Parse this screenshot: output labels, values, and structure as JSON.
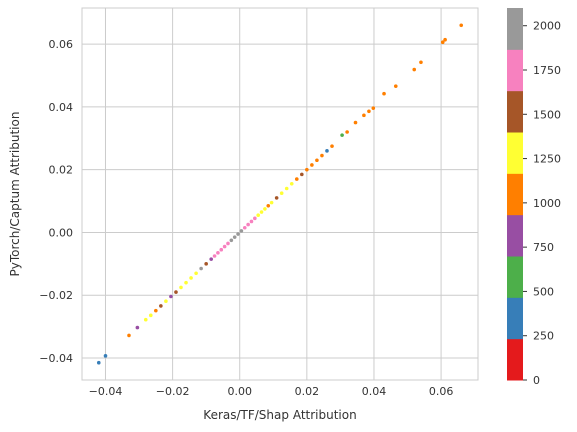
{
  "chart_data": {
    "type": "scatter",
    "title": "",
    "xlabel": "Keras/TF/Shap Attribution",
    "ylabel": "PyTorch/Captum Attribution",
    "xlim": [
      -0.047,
      0.071
    ],
    "ylim": [
      -0.047,
      0.0715
    ],
    "x_ticks": [
      -0.04,
      -0.02,
      0.0,
      0.02,
      0.04,
      0.06
    ],
    "x_tick_labels": [
      "−0.04",
      "−0.02",
      "0.00",
      "0.02",
      "0.04",
      "0.06"
    ],
    "y_ticks": [
      -0.04,
      -0.02,
      0.0,
      0.02,
      0.04,
      0.06
    ],
    "y_tick_labels": [
      "−0.04",
      "−0.02",
      "0.00",
      "0.02",
      "0.04",
      "0.06"
    ],
    "grid": true,
    "colorbar": {
      "min": 0,
      "max": 2100,
      "ticks": [
        0,
        250,
        500,
        750,
        1000,
        1250,
        1500,
        1750,
        2000
      ],
      "tick_labels": [
        "0",
        "250",
        "500",
        "750",
        "1000",
        "1250",
        "1500",
        "1750",
        "2000"
      ],
      "colors": [
        "#e41a1c",
        "#377eb8",
        "#4daf4a",
        "#984ea3",
        "#ff7f00",
        "#ffff33",
        "#a65628",
        "#f781bf",
        "#999999"
      ]
    },
    "points": [
      {
        "x": -0.042,
        "y": -0.0415,
        "c": 420
      },
      {
        "x": -0.04,
        "y": -0.0393,
        "c": 450
      },
      {
        "x": -0.033,
        "y": -0.0328,
        "c": 1020
      },
      {
        "x": -0.0305,
        "y": -0.0303,
        "c": 800
      },
      {
        "x": -0.028,
        "y": -0.0278,
        "c": 1300
      },
      {
        "x": -0.0265,
        "y": -0.0264,
        "c": 1350
      },
      {
        "x": -0.025,
        "y": -0.0249,
        "c": 1100
      },
      {
        "x": -0.0235,
        "y": -0.0234,
        "c": 1450
      },
      {
        "x": -0.022,
        "y": -0.0219,
        "c": 1250
      },
      {
        "x": -0.0205,
        "y": -0.0204,
        "c": 800
      },
      {
        "x": -0.019,
        "y": -0.019,
        "c": 1500
      },
      {
        "x": -0.0175,
        "y": -0.0175,
        "c": 1300
      },
      {
        "x": -0.016,
        "y": -0.016,
        "c": 1250
      },
      {
        "x": -0.0145,
        "y": -0.0145,
        "c": 1350
      },
      {
        "x": -0.013,
        "y": -0.013,
        "c": 1260
      },
      {
        "x": -0.0115,
        "y": -0.0115,
        "c": 1900
      },
      {
        "x": -0.01,
        "y": -0.01,
        "c": 1600
      },
      {
        "x": -0.0085,
        "y": -0.0085,
        "c": 800
      },
      {
        "x": -0.0075,
        "y": -0.0075,
        "c": 1800
      },
      {
        "x": -0.0065,
        "y": -0.0065,
        "c": 1850
      },
      {
        "x": -0.0055,
        "y": -0.0055,
        "c": 1800
      },
      {
        "x": -0.0045,
        "y": -0.0045,
        "c": 1750
      },
      {
        "x": -0.0035,
        "y": -0.0035,
        "c": 1800
      },
      {
        "x": -0.0025,
        "y": -0.0025,
        "c": 1950
      },
      {
        "x": -0.0015,
        "y": -0.0015,
        "c": 2000
      },
      {
        "x": -0.0005,
        "y": -0.0005,
        "c": 2050
      },
      {
        "x": 0.0005,
        "y": 0.0005,
        "c": 2000
      },
      {
        "x": 0.0015,
        "y": 0.0015,
        "c": 1800
      },
      {
        "x": 0.0025,
        "y": 0.0025,
        "c": 1850
      },
      {
        "x": 0.0035,
        "y": 0.0035,
        "c": 1750
      },
      {
        "x": 0.0045,
        "y": 0.0045,
        "c": 1800
      },
      {
        "x": 0.0055,
        "y": 0.0055,
        "c": 1300
      },
      {
        "x": 0.0065,
        "y": 0.0065,
        "c": 1280
      },
      {
        "x": 0.0075,
        "y": 0.0075,
        "c": 1320
      },
      {
        "x": 0.0085,
        "y": 0.0085,
        "c": 1000
      },
      {
        "x": 0.0095,
        "y": 0.0095,
        "c": 1350
      },
      {
        "x": 0.011,
        "y": 0.011,
        "c": 1500
      },
      {
        "x": 0.0125,
        "y": 0.0125,
        "c": 1300
      },
      {
        "x": 0.014,
        "y": 0.014,
        "c": 1280
      },
      {
        "x": 0.0155,
        "y": 0.0155,
        "c": 1260
      },
      {
        "x": 0.017,
        "y": 0.017,
        "c": 1000
      },
      {
        "x": 0.0185,
        "y": 0.0185,
        "c": 1450
      },
      {
        "x": 0.02,
        "y": 0.02,
        "c": 1000
      },
      {
        "x": 0.0215,
        "y": 0.0215,
        "c": 1020
      },
      {
        "x": 0.023,
        "y": 0.023,
        "c": 1050
      },
      {
        "x": 0.0245,
        "y": 0.0245,
        "c": 1000
      },
      {
        "x": 0.026,
        "y": 0.026,
        "c": 300
      },
      {
        "x": 0.0275,
        "y": 0.0275,
        "c": 1000
      },
      {
        "x": 0.0305,
        "y": 0.031,
        "c": 600
      },
      {
        "x": 0.032,
        "y": 0.032,
        "c": 1050
      },
      {
        "x": 0.0345,
        "y": 0.035,
        "c": 1000
      },
      {
        "x": 0.037,
        "y": 0.0373,
        "c": 1000
      },
      {
        "x": 0.0385,
        "y": 0.0386,
        "c": 1050
      },
      {
        "x": 0.0398,
        "y": 0.0396,
        "c": 1000
      },
      {
        "x": 0.043,
        "y": 0.0442,
        "c": 1000
      },
      {
        "x": 0.0465,
        "y": 0.0466,
        "c": 1000
      },
      {
        "x": 0.052,
        "y": 0.0519,
        "c": 1000
      },
      {
        "x": 0.054,
        "y": 0.0542,
        "c": 1000
      },
      {
        "x": 0.0605,
        "y": 0.0606,
        "c": 1000
      },
      {
        "x": 0.0612,
        "y": 0.0614,
        "c": 1000
      },
      {
        "x": 0.066,
        "y": 0.066,
        "c": 1000
      }
    ]
  }
}
